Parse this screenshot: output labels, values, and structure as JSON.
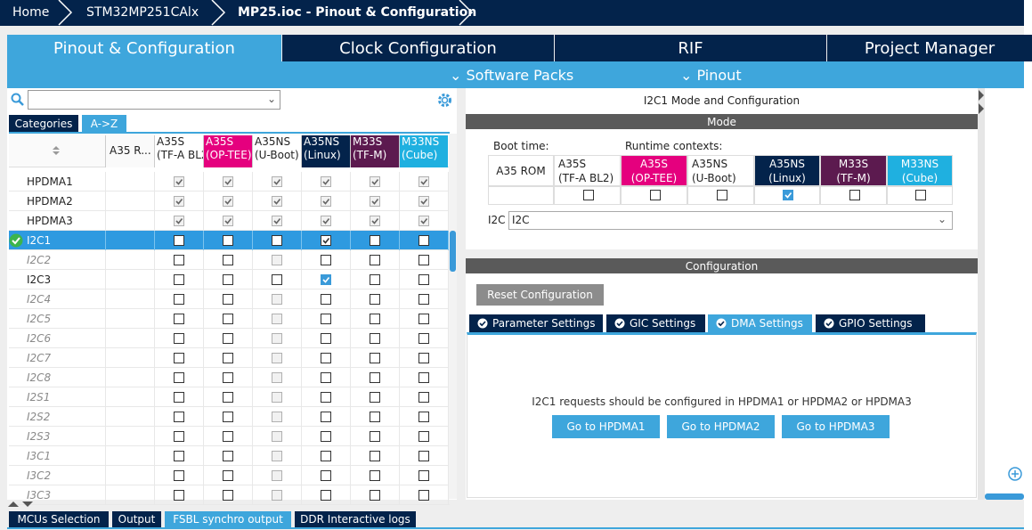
{
  "breadcrumb": [
    "Home",
    "STM32MP251CAlx",
    "MP25.ioc - Pinout & Configuration"
  ],
  "tabs": [
    "Pinout & Configuration",
    "Clock Configuration",
    "RIF",
    "Project Manager"
  ],
  "active_tab": 0,
  "submenu": [
    "Software Packs",
    "Pinout"
  ],
  "left": {
    "view_tabs": [
      "Categories",
      "A->Z"
    ],
    "active_view": 1,
    "columns": [
      {
        "line1": "A35 R..."
      },
      {
        "line1": "A35S",
        "line2": "(TF-A  BL2)",
        "color": "#ffffff"
      },
      {
        "line1": "A35S",
        "line2": "(OP-TEE)",
        "color": "#e5007e"
      },
      {
        "line1": "A35NS",
        "line2": "(U-Boot)",
        "color": "#ffffff"
      },
      {
        "line1": "A35NS",
        "line2": "(Linux)",
        "color": "#03234b"
      },
      {
        "line1": "M33S",
        "line2": "(TF-M)",
        "color": "#5c1a4f"
      },
      {
        "line1": "M33NS",
        "line2": "(Cube)",
        "color": "#1fb0e0"
      }
    ],
    "selected_row": 3,
    "rows": [
      {
        "name": "HPDMA1",
        "italic": false,
        "checked": [
          true,
          true,
          true,
          true,
          true,
          true
        ],
        "greyed": [
          true,
          true,
          true,
          true,
          true,
          true
        ]
      },
      {
        "name": "HPDMA2",
        "italic": false,
        "checked": [
          true,
          true,
          true,
          true,
          true,
          true
        ],
        "greyed": [
          true,
          true,
          true,
          true,
          true,
          true
        ]
      },
      {
        "name": "HPDMA3",
        "italic": false,
        "checked": [
          true,
          true,
          true,
          true,
          true,
          true
        ],
        "greyed": [
          true,
          true,
          true,
          true,
          true,
          true
        ]
      },
      {
        "name": "I2C1",
        "italic": false,
        "ok": true,
        "checked": [
          false,
          false,
          false,
          true,
          false,
          false
        ],
        "greyed": [
          false,
          false,
          false,
          false,
          false,
          false
        ]
      },
      {
        "name": "I2C2",
        "italic": true,
        "checked": [
          false,
          false,
          false,
          false,
          false,
          false
        ],
        "greyed": [
          false,
          false,
          true,
          false,
          false,
          false
        ]
      },
      {
        "name": "I2C3",
        "italic": false,
        "checked": [
          false,
          false,
          false,
          true,
          false,
          false
        ],
        "greyed": [
          false,
          false,
          false,
          false,
          false,
          false
        ]
      },
      {
        "name": "I2C4",
        "italic": true,
        "checked": [
          false,
          false,
          false,
          false,
          false,
          false
        ],
        "greyed": [
          false,
          false,
          true,
          false,
          false,
          false
        ]
      },
      {
        "name": "I2C5",
        "italic": true,
        "checked": [
          false,
          false,
          false,
          false,
          false,
          false
        ],
        "greyed": [
          false,
          false,
          true,
          false,
          false,
          false
        ]
      },
      {
        "name": "I2C6",
        "italic": true,
        "checked": [
          false,
          false,
          false,
          false,
          false,
          false
        ],
        "greyed": [
          false,
          false,
          true,
          false,
          false,
          false
        ]
      },
      {
        "name": "I2C7",
        "italic": true,
        "checked": [
          false,
          false,
          false,
          false,
          false,
          false
        ],
        "greyed": [
          false,
          false,
          true,
          false,
          false,
          false
        ]
      },
      {
        "name": "I2C8",
        "italic": true,
        "checked": [
          false,
          false,
          false,
          false,
          false,
          false
        ],
        "greyed": [
          false,
          false,
          true,
          false,
          false,
          false
        ]
      },
      {
        "name": "I2S1",
        "italic": true,
        "checked": [
          false,
          false,
          false,
          false,
          false,
          false
        ],
        "greyed": [
          false,
          false,
          true,
          false,
          false,
          false
        ]
      },
      {
        "name": "I2S2",
        "italic": true,
        "checked": [
          false,
          false,
          false,
          false,
          false,
          false
        ],
        "greyed": [
          false,
          false,
          true,
          false,
          false,
          false
        ]
      },
      {
        "name": "I2S3",
        "italic": true,
        "checked": [
          false,
          false,
          false,
          false,
          false,
          false
        ],
        "greyed": [
          false,
          false,
          true,
          false,
          false,
          false
        ]
      },
      {
        "name": "I3C1",
        "italic": true,
        "checked": [
          false,
          false,
          false,
          false,
          false,
          false
        ],
        "greyed": [
          false,
          false,
          true,
          false,
          false,
          false
        ]
      },
      {
        "name": "I3C2",
        "italic": true,
        "checked": [
          false,
          false,
          false,
          false,
          false,
          false
        ],
        "greyed": [
          false,
          false,
          true,
          false,
          false,
          false
        ]
      },
      {
        "name": "I3C3",
        "italic": true,
        "checked": [
          false,
          false,
          false,
          false,
          false,
          false
        ],
        "greyed": [
          false,
          false,
          true,
          false,
          false,
          false
        ]
      }
    ]
  },
  "mode": {
    "title": "I2C1 Mode and Configuration",
    "header": "Mode",
    "boot_label": "Boot time:",
    "runtime_label": "Runtime contexts:",
    "boot": "A35 ROM",
    "contexts": [
      {
        "line1": "A35S",
        "line2": "(TF-A  BL2)",
        "color": "#ffffff",
        "checked": false
      },
      {
        "line1": "A35S",
        "line2": "(OP-TEE)",
        "color": "#e5007e",
        "checked": false
      },
      {
        "line1": "A35NS",
        "line2": "(U-Boot)",
        "color": "#ffffff",
        "checked": false
      },
      {
        "line1": "A35NS",
        "line2": "(Linux)",
        "color": "#03234b",
        "checked": true
      },
      {
        "line1": "M33S",
        "line2": "(TF-M)",
        "color": "#5c1a4f",
        "checked": false
      },
      {
        "line1": "M33NS",
        "line2": "(Cube)",
        "color": "#1fb0e0",
        "checked": false
      }
    ],
    "field_label": "I2C",
    "field_value": "I2C"
  },
  "configuration": {
    "header": "Configuration",
    "reset": "Reset Configuration",
    "tabs": [
      "Parameter Settings",
      "GIC Settings",
      "DMA Settings",
      "GPIO Settings"
    ],
    "active_tab": 2,
    "message": "I2C1 requests should be configured in HPDMA1 or HPDMA2 or HPDMA3",
    "buttons": [
      "Go to HPDMA1",
      "Go to HPDMA2",
      "Go to HPDMA3"
    ]
  },
  "bottom_tabs": [
    "MCUs Selection",
    "Output",
    "FSBL synchro output",
    "DDR Interactive logs"
  ],
  "bottom_active": 2
}
